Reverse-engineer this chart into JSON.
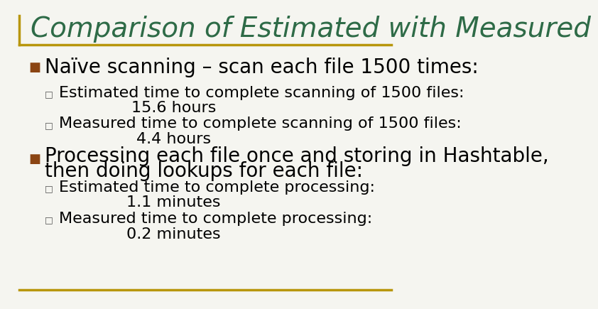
{
  "title": "Comparison of Estimated with Measured",
  "title_color": "#2E6B47",
  "title_fontsize": 28,
  "background_color": "#F5F5F0",
  "border_color": "#B8960C",
  "bullet_marker_color": "#8B4513",
  "bullet_fontsize": 20,
  "sub_fontsize": 16,
  "text_color": "#000000",
  "font_family": "DejaVu Sans",
  "bullet1_text": "Naïve scanning – scan each file 1500 times:",
  "sub1_1_line1": "Estimated time to complete scanning of 1500 files:",
  "sub1_1_line2": "15.6 hours",
  "sub1_2_line1": "Measured time to complete scanning of 1500 files:",
  "sub1_2_line2": "4.4 hours",
  "bullet2_line1": "Processing each file once and storing in Hashtable,",
  "bullet2_line2": "then doing lookups for each file:",
  "sub2_1_line1": "Estimated time to complete processing:",
  "sub2_1_line2": "1.1 minutes",
  "sub2_2_line1": "Measured time to complete processing:",
  "sub2_2_line2": "0.2 minutes"
}
